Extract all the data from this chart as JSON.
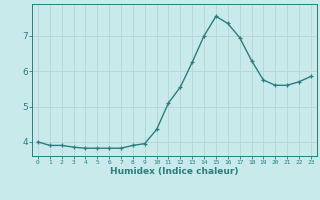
{
  "x": [
    0,
    1,
    2,
    3,
    4,
    5,
    6,
    7,
    8,
    9,
    10,
    11,
    12,
    13,
    14,
    15,
    16,
    17,
    18,
    19,
    20,
    21,
    22,
    23
  ],
  "y": [
    4.0,
    3.9,
    3.9,
    3.85,
    3.82,
    3.82,
    3.82,
    3.82,
    3.9,
    3.95,
    4.35,
    5.1,
    5.55,
    6.25,
    7.0,
    7.55,
    7.35,
    6.95,
    6.3,
    5.75,
    5.6,
    5.6,
    5.7,
    5.85
  ],
  "xlabel": "Humidex (Indice chaleur)",
  "bg_color": "#c8eaea",
  "line_color": "#2d7d7d",
  "grid_color": "#b5d5d5",
  "tick_color": "#2d7d7d",
  "ylabel_ticks": [
    4,
    5,
    6,
    7
  ],
  "xlim": [
    -0.5,
    23.5
  ],
  "ylim": [
    3.6,
    7.9
  ],
  "figsize": [
    3.2,
    2.0
  ],
  "dpi": 100
}
